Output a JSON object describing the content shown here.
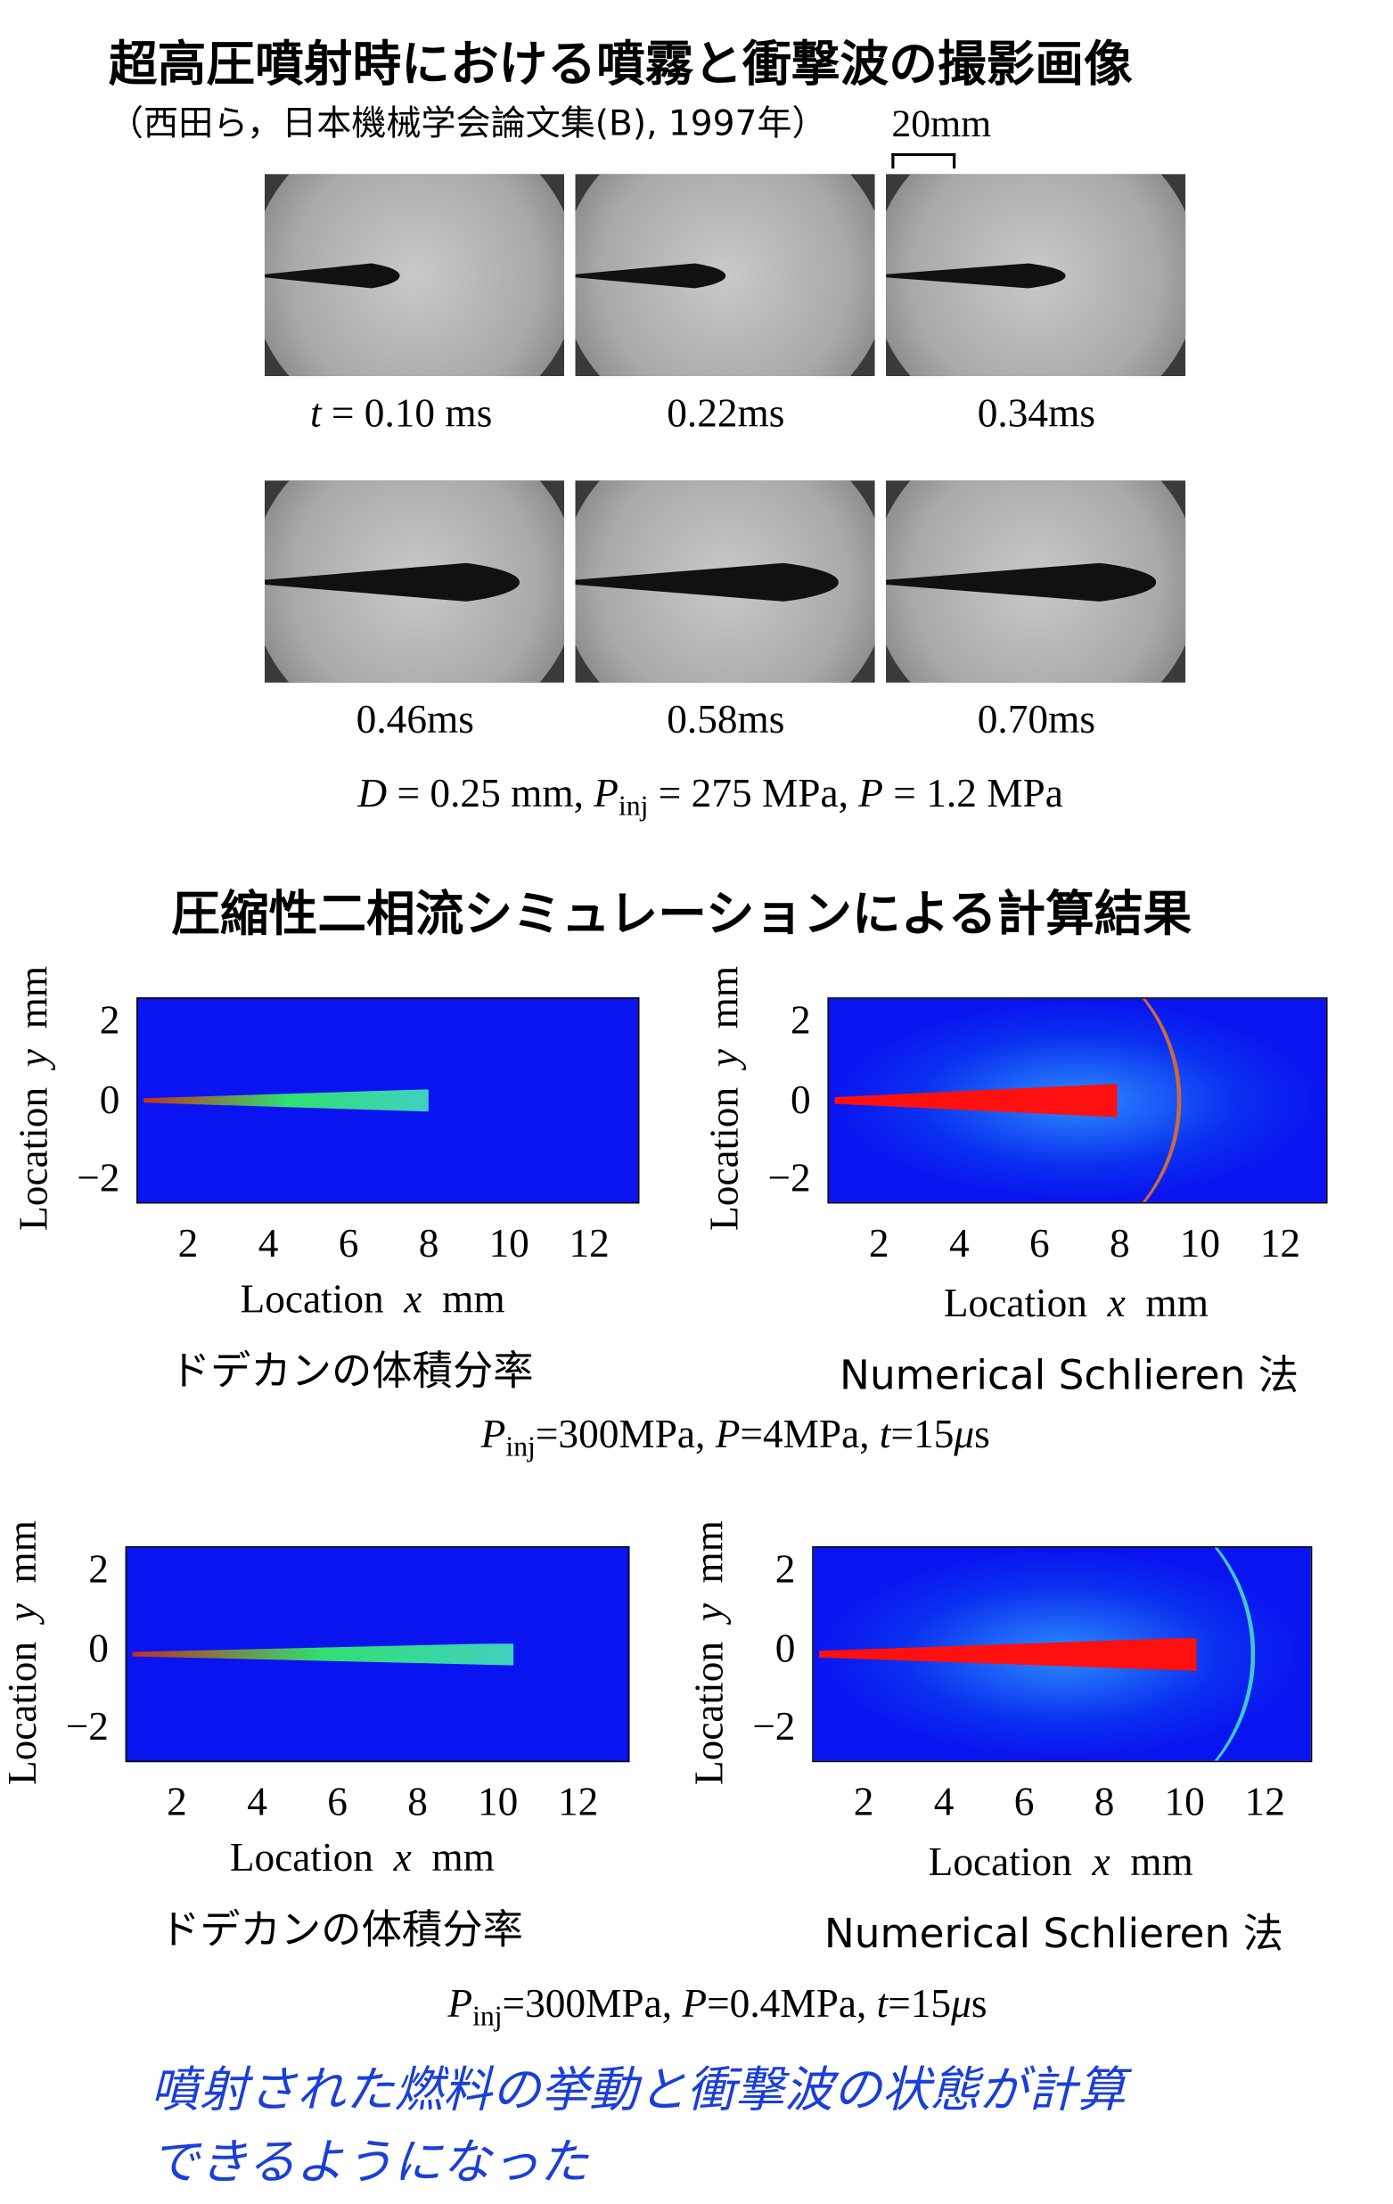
{
  "title": "超高圧噴射時における噴霧と衝撃波の撮影画像",
  "citation": "（西田ら，日本機械学会論文集(B), 1997年）",
  "scale_label": "20mm",
  "photo_labels": [
    [
      {
        "text": "t",
        "style": "i"
      },
      {
        "text": " = 0.10 ms"
      }
    ],
    [
      {
        "text": "0.22ms"
      }
    ],
    [
      {
        "text": "0.34ms"
      }
    ],
    [
      {
        "text": "0.46ms"
      }
    ],
    [
      {
        "text": "0.58ms"
      }
    ],
    [
      {
        "text": "0.70ms"
      }
    ]
  ],
  "photo_conditions": [
    {
      "text": "D",
      "style": "i"
    },
    {
      "text": " = 0.25 mm, "
    },
    {
      "text": "P",
      "style": "i"
    },
    {
      "text": "inj",
      "style": "sub"
    },
    {
      "text": " = 275 MPa, "
    },
    {
      "text": "P",
      "style": "i"
    },
    {
      "text": " = 1.2 MPa"
    }
  ],
  "section_title": "圧縮性二相流シミュレーションによる計算結果",
  "panels": [
    {
      "ylabel": [
        {
          "text": "Location  "
        },
        {
          "text": "y",
          "style": "i"
        },
        {
          "text": "  mm"
        }
      ],
      "yticks": [
        "2",
        "0",
        "−2"
      ],
      "xticks": [
        "2",
        "4",
        "6",
        "8",
        "10",
        "12"
      ],
      "xlabel": [
        {
          "text": "Location  "
        },
        {
          "text": "x",
          "style": "i"
        },
        {
          "text": "  mm"
        }
      ],
      "caption": "ドデカンの体積分率"
    },
    {
      "ylabel": [
        {
          "text": "Location  "
        },
        {
          "text": "y",
          "style": "i"
        },
        {
          "text": "  mm"
        }
      ],
      "yticks": [
        "2",
        "0",
        "−2"
      ],
      "xticks": [
        "2",
        "4",
        "6",
        "8",
        "10",
        "12"
      ],
      "xlabel": [
        {
          "text": "Location  "
        },
        {
          "text": "x",
          "style": "i"
        },
        {
          "text": "  mm"
        }
      ],
      "caption": "Numerical Schlieren 法"
    },
    {
      "ylabel": [
        {
          "text": "Location  "
        },
        {
          "text": "y",
          "style": "i"
        },
        {
          "text": "  mm"
        }
      ],
      "yticks": [
        "2",
        "0",
        "−2"
      ],
      "xticks": [
        "2",
        "4",
        "6",
        "8",
        "10",
        "12"
      ],
      "xlabel": [
        {
          "text": "Location  "
        },
        {
          "text": "x",
          "style": "i"
        },
        {
          "text": "  mm"
        }
      ],
      "caption": "ドデカンの体積分率"
    },
    {
      "ylabel": [
        {
          "text": "Location  "
        },
        {
          "text": "y",
          "style": "i"
        },
        {
          "text": "  mm"
        }
      ],
      "yticks": [
        "2",
        "0",
        "−2"
      ],
      "xticks": [
        "2",
        "4",
        "6",
        "8",
        "10",
        "12"
      ],
      "xlabel": [
        {
          "text": "Location  "
        },
        {
          "text": "x",
          "style": "i"
        },
        {
          "text": "  mm"
        }
      ],
      "caption": "Numerical Schlieren 法"
    }
  ],
  "sim_conditions": [
    [
      {
        "text": "P",
        "style": "i"
      },
      {
        "text": "inj",
        "style": "sub"
      },
      {
        "text": "=300MPa, "
      },
      {
        "text": "P",
        "style": "i"
      },
      {
        "text": "=4MPa, "
      },
      {
        "text": "t",
        "style": "i"
      },
      {
        "text": "=15"
      },
      {
        "text": "μ",
        "style": "i"
      },
      {
        "text": "s"
      }
    ],
    [
      {
        "text": "P",
        "style": "i"
      },
      {
        "text": "inj",
        "style": "sub"
      },
      {
        "text": "=300MPa, "
      },
      {
        "text": "P",
        "style": "i"
      },
      {
        "text": "=0.4MPa, "
      },
      {
        "text": "t",
        "style": "i"
      },
      {
        "text": "=15"
      },
      {
        "text": "μ",
        "style": "i"
      },
      {
        "text": "s"
      }
    ]
  ],
  "conclusion": [
    "噴射された燃料の挙動と衝撃波の状態が計算",
    "できるようになった"
  ]
}
